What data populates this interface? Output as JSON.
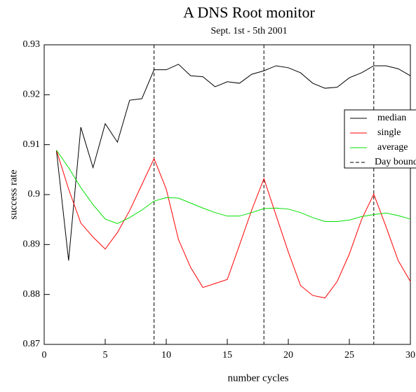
{
  "chart_data": {
    "type": "line",
    "title": "A DNS Root monitor",
    "subtitle": "Sept. 1st - 5th 2001",
    "x_label": "number cycles",
    "y_label": "success rate",
    "x": [
      1,
      2,
      3,
      4,
      5,
      6,
      7,
      8,
      9,
      10,
      11,
      12,
      13,
      14,
      15,
      16,
      17,
      18,
      19,
      20,
      21,
      22,
      23,
      24,
      25,
      26,
      27,
      28,
      29,
      30
    ],
    "series": [
      {
        "name": "median",
        "color": "#000000",
        "values": [
          0.9089,
          0.8868,
          0.9135,
          0.9054,
          0.9142,
          0.9105,
          0.9189,
          0.9192,
          0.925,
          0.925,
          0.9261,
          0.9238,
          0.9236,
          0.9216,
          0.9226,
          0.9223,
          0.9241,
          0.9248,
          0.9258,
          0.9254,
          0.9244,
          0.9223,
          0.9213,
          0.9215,
          0.9234,
          0.9244,
          0.9258,
          0.9258,
          0.9252,
          0.9238
        ]
      },
      {
        "name": "single",
        "color": "#ff0000",
        "values": [
          0.9089,
          0.9011,
          0.8943,
          0.8915,
          0.8891,
          0.8924,
          0.8968,
          0.902,
          0.9072,
          0.9011,
          0.891,
          0.8854,
          0.8814,
          0.8822,
          0.883,
          0.8899,
          0.8969,
          0.9032,
          0.8958,
          0.8885,
          0.8818,
          0.8798,
          0.8793,
          0.8826,
          0.8881,
          0.895,
          0.9001,
          0.8936,
          0.8868,
          0.8826
        ]
      },
      {
        "name": "average",
        "color": "#00e000",
        "values": [
          0.9089,
          0.9054,
          0.9014,
          0.898,
          0.8951,
          0.8942,
          0.8954,
          0.8969,
          0.8987,
          0.8994,
          0.8993,
          0.8983,
          0.8973,
          0.8964,
          0.8957,
          0.8957,
          0.8964,
          0.8972,
          0.8973,
          0.8971,
          0.8964,
          0.8954,
          0.8946,
          0.8946,
          0.8949,
          0.8956,
          0.896,
          0.8963,
          0.8958,
          0.8951
        ]
      }
    ],
    "vlines": {
      "name": "Day boundary",
      "color": "#000000",
      "x": [
        9,
        18,
        27
      ]
    },
    "xlim": [
      0,
      30
    ],
    "ylim": [
      0.87,
      0.93
    ],
    "xticks": [
      0,
      5,
      10,
      15,
      20,
      25,
      30
    ],
    "yticks": [
      0.87,
      0.88,
      0.89,
      0.9,
      0.91,
      0.92,
      0.93
    ],
    "grid": false,
    "legend": "right"
  }
}
